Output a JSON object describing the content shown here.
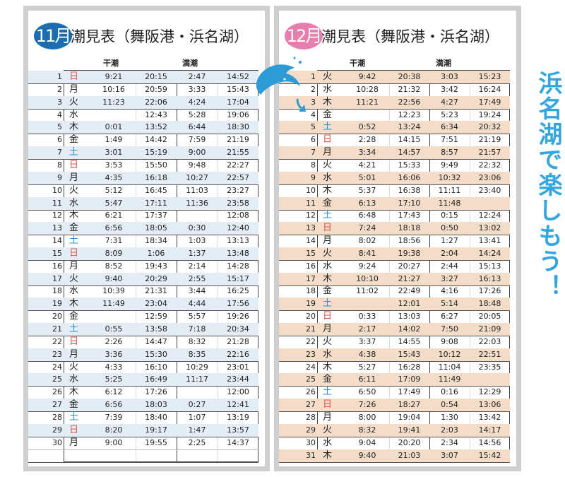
{
  "colors": {
    "nov_badge": "#1b6db0",
    "dec_badge": "#e57fae",
    "nov_stripe": "#e4edf6",
    "dec_stripe": "#f3ddc9",
    "sunday": "#e0524a",
    "saturday": "#2c8fd0",
    "slogan": "#33a6de"
  },
  "slogan": "浜名湖で楽しもう！",
  "icons": [
    "dolphin-icon",
    "arrow-down-icon"
  ],
  "november": {
    "badge": "11月",
    "title": "潮見表（舞阪港・浜名湖）",
    "low_label": "干潮",
    "high_label": "満潮",
    "rows": [
      [
        "1",
        "日",
        "9:21",
        "20:15",
        "2:47",
        "14:52"
      ],
      [
        "2",
        "月",
        "10:16",
        "20:59",
        "3:33",
        "15:43"
      ],
      [
        "3",
        "火",
        "11:23",
        "22:06",
        "4:24",
        "17:04"
      ],
      [
        "4",
        "水",
        "",
        "12:43",
        "5:28",
        "19:06"
      ],
      [
        "5",
        "木",
        "0:01",
        "13:52",
        "6:44",
        "18:30"
      ],
      [
        "6",
        "金",
        "1:49",
        "14:42",
        "7:59",
        "21:19"
      ],
      [
        "7",
        "土",
        "3:01",
        "15:19",
        "9:00",
        "21:55"
      ],
      [
        "8",
        "日",
        "3:53",
        "15:50",
        "9:48",
        "22:27"
      ],
      [
        "9",
        "月",
        "4:35",
        "16:18",
        "10:27",
        "22:57"
      ],
      [
        "10",
        "火",
        "5:12",
        "16:45",
        "11:03",
        "23:27"
      ],
      [
        "11",
        "水",
        "5:47",
        "17:11",
        "11:36",
        "23:58"
      ],
      [
        "12",
        "木",
        "6:21",
        "17:37",
        "",
        "12:08"
      ],
      [
        "13",
        "金",
        "6:56",
        "18:05",
        "0:30",
        "12:40"
      ],
      [
        "14",
        "土",
        "7:31",
        "18:34",
        "1:03",
        "13:13"
      ],
      [
        "15",
        "日",
        "8:09",
        "1:06",
        "1:37",
        "13:48"
      ],
      [
        "16",
        "月",
        "8:52",
        "19:43",
        "2:14",
        "14:28"
      ],
      [
        "17",
        "火",
        "9:40",
        "20:29",
        "2:55",
        "15:17"
      ],
      [
        "18",
        "水",
        "10:39",
        "21:31",
        "3:44",
        "16:25"
      ],
      [
        "19",
        "木",
        "11:49",
        "23:04",
        "4:44",
        "17:56"
      ],
      [
        "20",
        "金",
        "",
        "12:59",
        "5:57",
        "19:26"
      ],
      [
        "21",
        "土",
        "0:55",
        "13:58",
        "7:18",
        "20:34"
      ],
      [
        "22",
        "日",
        "2:26",
        "14:47",
        "8:32",
        "21:28"
      ],
      [
        "23",
        "月",
        "3:36",
        "15:30",
        "8:35",
        "22:16"
      ],
      [
        "24",
        "火",
        "4:33",
        "16:10",
        "10:29",
        "23:01"
      ],
      [
        "25",
        "水",
        "5:25",
        "16:49",
        "11:17",
        "23:44"
      ],
      [
        "26",
        "木",
        "6:12",
        "17:26",
        "",
        "12:00"
      ],
      [
        "27",
        "金",
        "6:56",
        "18:03",
        "0:27",
        "12:41"
      ],
      [
        "28",
        "土",
        "7:39",
        "18:40",
        "1:07",
        "13:19"
      ],
      [
        "29",
        "日",
        "8:20",
        "19:17",
        "1:47",
        "13:57"
      ],
      [
        "30",
        "月",
        "9:00",
        "19:55",
        "2:25",
        "14:37"
      ],
      [
        "",
        "",
        "",
        "",
        "",
        ""
      ]
    ]
  },
  "december": {
    "badge": "12月",
    "title": "潮見表（舞阪港・浜名湖）",
    "low_label": "干潮",
    "high_label": "満潮",
    "rows": [
      [
        "1",
        "火",
        "9:42",
        "20:38",
        "3:03",
        "15:23"
      ],
      [
        "2",
        "水",
        "10:28",
        "21:32",
        "3:42",
        "16:24"
      ],
      [
        "3",
        "木",
        "11:21",
        "22:56",
        "4:27",
        "17:49"
      ],
      [
        "4",
        "金",
        "",
        "12:23",
        "5:23",
        "19:24"
      ],
      [
        "5",
        "土",
        "0:52",
        "13:24",
        "6:34",
        "20:32"
      ],
      [
        "6",
        "日",
        "2:28",
        "14:15",
        "7:51",
        "21:19"
      ],
      [
        "7",
        "月",
        "3:34",
        "14:57",
        "8:57",
        "21:57"
      ],
      [
        "8",
        "火",
        "4:21",
        "15:33",
        "9:49",
        "22:32"
      ],
      [
        "9",
        "水",
        "5:01",
        "16:06",
        "10:32",
        "23:06"
      ],
      [
        "10",
        "木",
        "5:37",
        "16:38",
        "11:11",
        "23:40"
      ],
      [
        "11",
        "金",
        "6:13",
        "17:10",
        "11:48",
        ""
      ],
      [
        "12",
        "土",
        "6:48",
        "17:43",
        "0:15",
        "12:24"
      ],
      [
        "13",
        "日",
        "7:24",
        "18:18",
        "0:50",
        "13:02"
      ],
      [
        "14",
        "月",
        "8:02",
        "18:56",
        "1:27",
        "13:41"
      ],
      [
        "15",
        "火",
        "8:41",
        "19:38",
        "2:04",
        "14:24"
      ],
      [
        "16",
        "水",
        "9:24",
        "20:27",
        "2:44",
        "15:13"
      ],
      [
        "17",
        "木",
        "10:10",
        "21:27",
        "3:27",
        "16:13"
      ],
      [
        "18",
        "金",
        "11:02",
        "22:49",
        "4:16",
        "17:26"
      ],
      [
        "19",
        "土",
        "",
        "12:01",
        "5:14",
        "18:48"
      ],
      [
        "20",
        "日",
        "0:33",
        "13:03",
        "6:27",
        "20:05"
      ],
      [
        "21",
        "月",
        "2:17",
        "14:02",
        "7:50",
        "21:09"
      ],
      [
        "22",
        "火",
        "3:37",
        "14:55",
        "9:08",
        "22:03"
      ],
      [
        "23",
        "水",
        "4:38",
        "15:43",
        "10:12",
        "22:51"
      ],
      [
        "24",
        "木",
        "5:27",
        "16:28",
        "11:04",
        "23:35"
      ],
      [
        "25",
        "金",
        "6:11",
        "17:09",
        "11:49",
        ""
      ],
      [
        "26",
        "土",
        "6:50",
        "17:49",
        "0:16",
        "12:29"
      ],
      [
        "27",
        "日",
        "7:26",
        "18:27",
        "0:54",
        "13:06"
      ],
      [
        "28",
        "月",
        "8:00",
        "19:04",
        "1:30",
        "13:42"
      ],
      [
        "29",
        "火",
        "8:32",
        "19:41",
        "2:03",
        "14:17"
      ],
      [
        "30",
        "水",
        "9:04",
        "20:20",
        "2:34",
        "14:56"
      ],
      [
        "31",
        "木",
        "9:40",
        "21:03",
        "3:07",
        "15:42"
      ]
    ]
  }
}
